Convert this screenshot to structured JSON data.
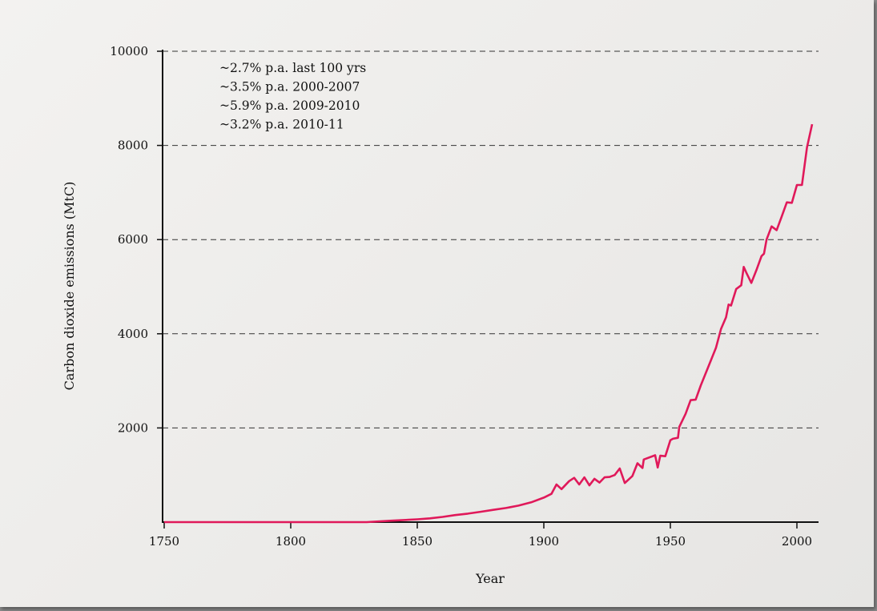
{
  "chart_data": {
    "type": "line",
    "xlabel": "Year",
    "ylabel": "Carbon dioxide emissions (MtC)",
    "xlim": [
      1750,
      2010
    ],
    "ylim": [
      0,
      10000
    ],
    "x_ticks": [
      1750,
      1800,
      1850,
      1900,
      1950,
      2000
    ],
    "y_ticks": [
      2000,
      4000,
      6000,
      8000,
      10000
    ],
    "grid": "horizontal dashed",
    "line_color": "#e0195a",
    "annotations": [
      "~2.7% p.a. last 100 yrs",
      "~3.5% p.a. 2000-2007",
      "~5.9% p.a. 2009-2010",
      "~3.2% p.a. 2010-11"
    ],
    "series": [
      {
        "x": [
          1750,
          1800,
          1830,
          1840,
          1850,
          1855,
          1860,
          1865,
          1870,
          1875,
          1880,
          1885,
          1890,
          1895,
          1900,
          1903,
          1905,
          1907,
          1910,
          1912,
          1914,
          1916,
          1918,
          1920,
          1922,
          1924,
          1926,
          1928,
          1930,
          1932,
          1935,
          1937,
          1939,
          1939.5,
          1944,
          1945,
          1946,
          1948,
          1950,
          1951,
          1953,
          1953.5,
          1956,
          1958,
          1960,
          1962,
          1965,
          1968,
          1970,
          1972,
          1973,
          1974,
          1976,
          1978,
          1979,
          1980,
          1982,
          1984,
          1986,
          1987,
          1988,
          1990,
          1992,
          1994,
          1996,
          1998,
          2000,
          2002,
          2004,
          2006
        ],
        "y": [
          0,
          0,
          0,
          30,
          60,
          80,
          110,
          150,
          180,
          220,
          260,
          300,
          350,
          420,
          520,
          600,
          800,
          700,
          870,
          940,
          800,
          950,
          780,
          920,
          840,
          950,
          960,
          1000,
          1140,
          830,
          980,
          1250,
          1150,
          1330,
          1420,
          1160,
          1410,
          1400,
          1740,
          1770,
          1790,
          2020,
          2300,
          2590,
          2600,
          2900,
          3300,
          3700,
          4100,
          4350,
          4620,
          4600,
          4950,
          5030,
          5420,
          5300,
          5080,
          5350,
          5650,
          5700,
          6000,
          6280,
          6200,
          6490,
          6790,
          6780,
          7160,
          7160,
          7960,
          8450
        ]
      }
    ]
  }
}
